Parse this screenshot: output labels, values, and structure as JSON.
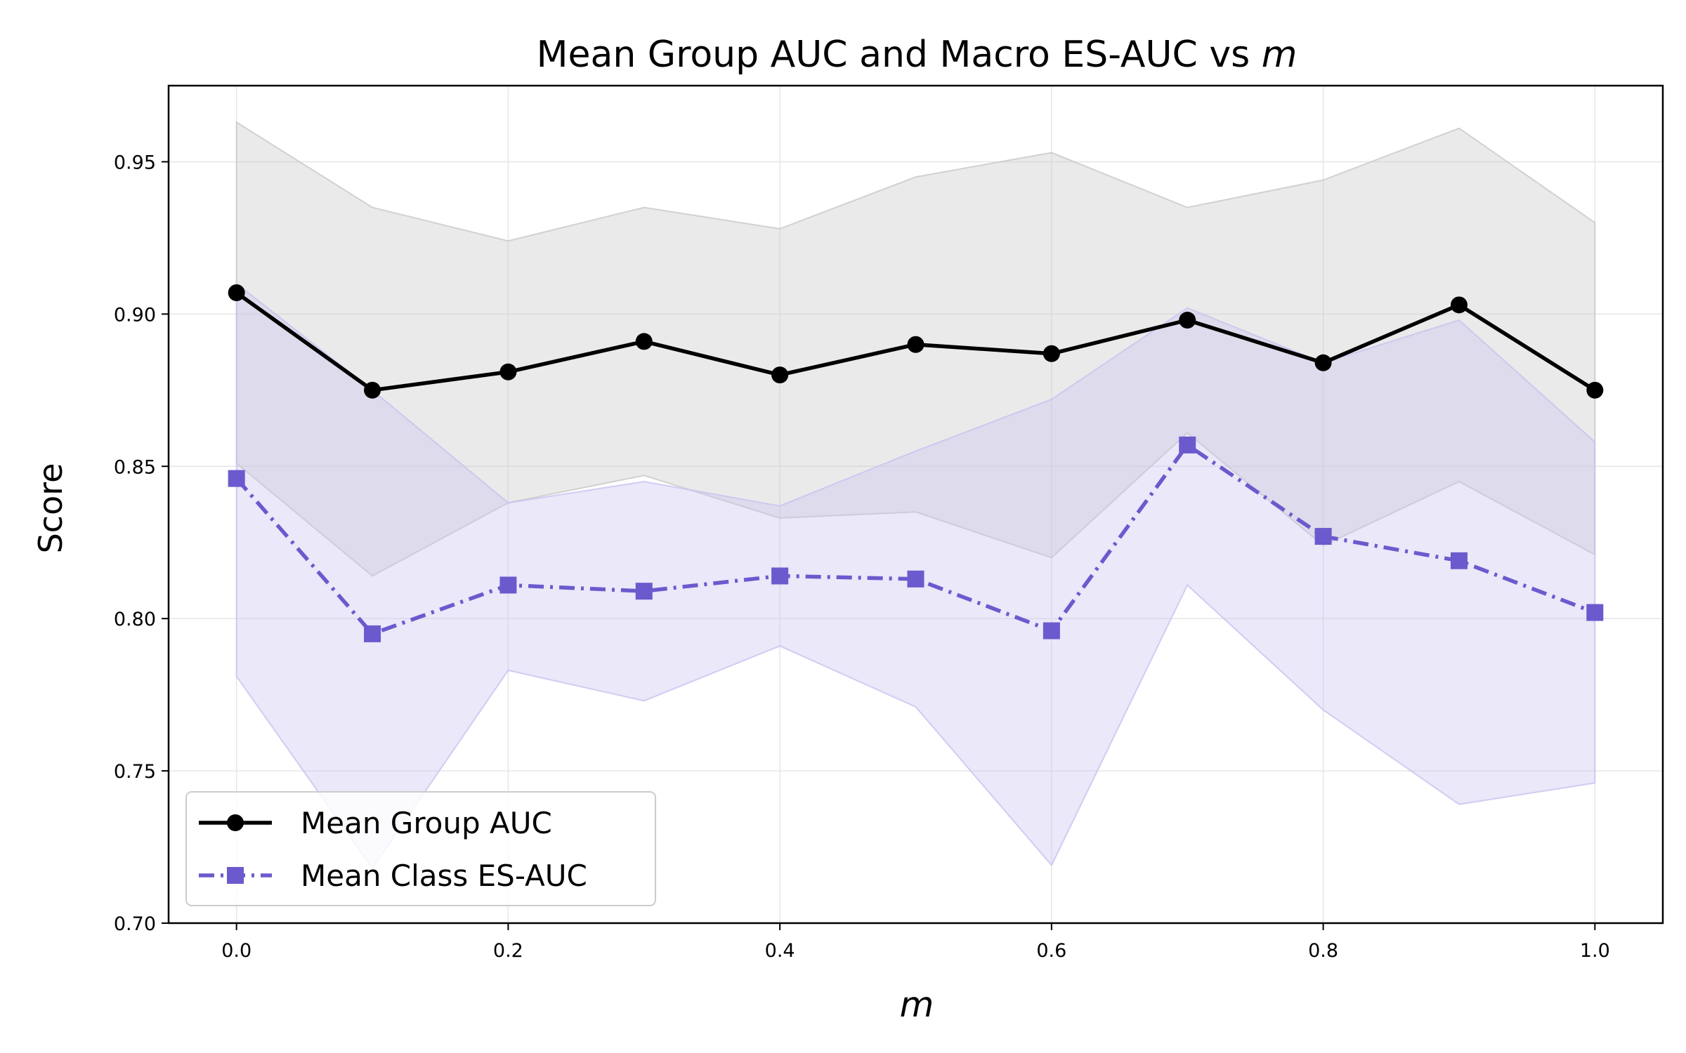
{
  "chart_data": {
    "type": "line",
    "title_main": "Mean Group AUC and Macro ES-AUC vs ",
    "title_var": "m",
    "xlabel": "m",
    "ylabel": "Score",
    "xlim": [
      -0.05,
      1.05
    ],
    "ylim": [
      0.7,
      0.975
    ],
    "x_ticks": [
      "0.0",
      "0.2",
      "0.4",
      "0.6",
      "0.8",
      "1.0"
    ],
    "y_ticks": [
      "0.70",
      "0.75",
      "0.80",
      "0.85",
      "0.90",
      "0.95"
    ],
    "grid": true,
    "legend_position": "lower-left",
    "x": [
      0.0,
      0.1,
      0.2,
      0.3,
      0.4,
      0.5,
      0.6,
      0.7,
      0.8,
      0.9,
      1.0
    ],
    "series": [
      {
        "name": "Mean Group AUC",
        "color": "#000000",
        "marker": "circle",
        "linestyle": "solid",
        "values": [
          0.907,
          0.875,
          0.881,
          0.891,
          0.88,
          0.89,
          0.887,
          0.898,
          0.884,
          0.903,
          0.875
        ],
        "band_upper": [
          0.963,
          0.935,
          0.924,
          0.935,
          0.928,
          0.945,
          0.953,
          0.935,
          0.944,
          0.961,
          0.93
        ],
        "band_lower": [
          0.851,
          0.814,
          0.838,
          0.847,
          0.833,
          0.835,
          0.82,
          0.861,
          0.824,
          0.845,
          0.821
        ],
        "band_color": "#c8c8c8"
      },
      {
        "name": "Mean Class ES-AUC",
        "color": "#6a5acd",
        "marker": "square",
        "linestyle": "dashdot",
        "values": [
          0.846,
          0.795,
          0.811,
          0.809,
          0.814,
          0.813,
          0.796,
          0.857,
          0.827,
          0.819,
          0.802
        ],
        "band_upper": [
          0.91,
          0.875,
          0.838,
          0.845,
          0.837,
          0.855,
          0.872,
          0.902,
          0.884,
          0.898,
          0.858
        ],
        "band_lower": [
          0.781,
          0.718,
          0.783,
          0.773,
          0.791,
          0.771,
          0.719,
          0.811,
          0.77,
          0.739,
          0.746
        ],
        "band_color": "#c8c2f0"
      }
    ]
  }
}
